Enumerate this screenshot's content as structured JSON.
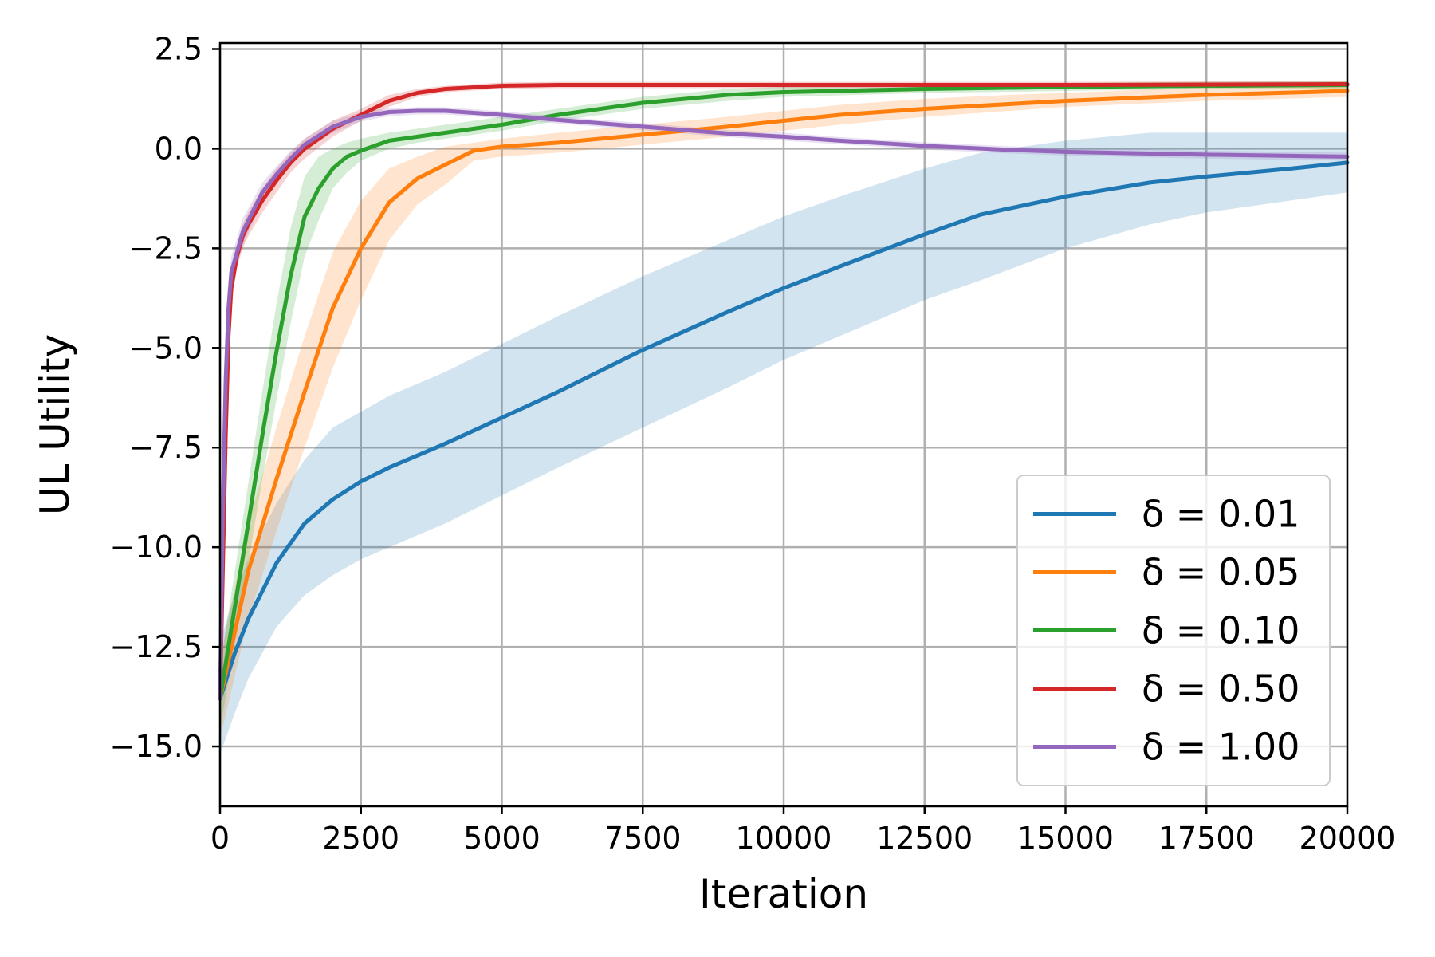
{
  "chart_data": {
    "type": "line",
    "title": "",
    "xlabel": "Iteration",
    "ylabel": "UL Utility",
    "xlim": [
      0,
      20000
    ],
    "ylim": [
      -16.5,
      2.65
    ],
    "xticks": [
      0,
      2500,
      5000,
      7500,
      10000,
      12500,
      15000,
      17500,
      20000
    ],
    "yticks": [
      2.5,
      0.0,
      -2.5,
      -5.0,
      -7.5,
      -10.0,
      -12.5,
      -15.0
    ],
    "xtick_labels": [
      "0",
      "2500",
      "5000",
      "7500",
      "10000",
      "12500",
      "15000",
      "17500",
      "20000"
    ],
    "ytick_labels": [
      "2.5",
      "0.0",
      "−2.5",
      "−5.0",
      "−7.5",
      "−10.0",
      "−12.5",
      "−15.0"
    ],
    "grid": true,
    "legend_position": "bottom-right",
    "series": [
      {
        "name": "δ = 0.01",
        "color": "#1f77b4",
        "x": [
          0,
          250,
          500,
          1000,
          1500,
          2000,
          2500,
          3000,
          4000,
          5000,
          6000,
          7500,
          9000,
          10000,
          11000,
          12500,
          13500,
          15000,
          16500,
          17500,
          19000,
          20000
        ],
        "y": [
          -13.8,
          -12.7,
          -11.8,
          -10.4,
          -9.4,
          -8.8,
          -8.35,
          -8.0,
          -7.4,
          -6.75,
          -6.1,
          -5.05,
          -4.1,
          -3.5,
          -2.95,
          -2.15,
          -1.65,
          -1.2,
          -0.85,
          -0.7,
          -0.5,
          -0.35
        ],
        "lower": [
          -15.2,
          -14.2,
          -13.3,
          -12.0,
          -11.2,
          -10.7,
          -10.3,
          -10.0,
          -9.4,
          -8.7,
          -8.0,
          -7.0,
          -6.0,
          -5.3,
          -4.7,
          -3.8,
          -3.3,
          -2.5,
          -1.9,
          -1.6,
          -1.3,
          -1.1
        ],
        "upper": [
          -12.4,
          -11.2,
          -10.3,
          -8.9,
          -7.8,
          -7.0,
          -6.6,
          -6.2,
          -5.6,
          -4.9,
          -4.2,
          -3.2,
          -2.3,
          -1.7,
          -1.2,
          -0.5,
          -0.1,
          0.2,
          0.4,
          0.4,
          0.4,
          0.4
        ]
      },
      {
        "name": "δ = 0.05",
        "color": "#ff7f0e",
        "x": [
          0,
          500,
          1000,
          1500,
          2000,
          2500,
          3000,
          3500,
          4000,
          4500,
          5000,
          6000,
          7500,
          9000,
          10000,
          11000,
          12500,
          14000,
          15000,
          17500,
          20000
        ],
        "y": [
          -13.8,
          -10.6,
          -8.3,
          -6.1,
          -4.0,
          -2.5,
          -1.35,
          -0.75,
          -0.4,
          -0.05,
          0.05,
          0.15,
          0.35,
          0.55,
          0.7,
          0.85,
          1.0,
          1.12,
          1.2,
          1.35,
          1.45
        ],
        "lower": [
          -14.8,
          -11.8,
          -9.6,
          -7.5,
          -5.5,
          -3.8,
          -2.3,
          -1.4,
          -0.9,
          -0.3,
          -0.2,
          -0.1,
          0.1,
          0.3,
          0.45,
          0.6,
          0.8,
          0.95,
          1.05,
          1.2,
          1.3
        ],
        "upper": [
          -12.8,
          -9.4,
          -7.0,
          -4.7,
          -2.6,
          -1.3,
          -0.5,
          -0.2,
          0.05,
          0.15,
          0.25,
          0.4,
          0.6,
          0.8,
          0.95,
          1.1,
          1.25,
          1.35,
          1.4,
          1.55,
          1.65
        ]
      },
      {
        "name": "δ = 0.10",
        "color": "#2ca02c",
        "x": [
          0,
          250,
          500,
          750,
          1000,
          1250,
          1500,
          1750,
          2000,
          2250,
          2500,
          3000,
          3500,
          4000,
          5000,
          6000,
          7500,
          9000,
          10000,
          12500,
          15000,
          17500,
          20000
        ],
        "y": [
          -13.8,
          -11.6,
          -9.4,
          -7.2,
          -5.1,
          -3.2,
          -1.7,
          -1.0,
          -0.5,
          -0.2,
          -0.05,
          0.2,
          0.3,
          0.4,
          0.6,
          0.85,
          1.15,
          1.35,
          1.42,
          1.5,
          1.55,
          1.58,
          1.6
        ],
        "lower": [
          -14.6,
          -12.5,
          -10.4,
          -8.3,
          -6.3,
          -4.4,
          -2.7,
          -1.8,
          -1.0,
          -0.6,
          -0.3,
          0.0,
          0.15,
          0.25,
          0.45,
          0.7,
          1.0,
          1.2,
          1.3,
          1.4,
          1.45,
          1.5,
          1.5
        ],
        "upper": [
          -13.0,
          -10.7,
          -8.4,
          -6.1,
          -3.9,
          -2.0,
          -0.7,
          -0.2,
          0.0,
          0.15,
          0.25,
          0.4,
          0.5,
          0.6,
          0.8,
          1.0,
          1.3,
          1.5,
          1.55,
          1.6,
          1.65,
          1.68,
          1.7
        ]
      },
      {
        "name": "δ = 0.50",
        "color": "#d62728",
        "x": [
          0,
          50,
          100,
          150,
          200,
          300,
          400,
          500,
          750,
          1000,
          1250,
          1500,
          2000,
          2500,
          3000,
          3500,
          4000,
          5000,
          6000,
          7500,
          10000,
          15000,
          20000
        ],
        "y": [
          -13.8,
          -10.5,
          -7.2,
          -4.7,
          -3.5,
          -2.7,
          -2.2,
          -1.9,
          -1.3,
          -0.8,
          -0.35,
          0.0,
          0.5,
          0.85,
          1.2,
          1.4,
          1.5,
          1.58,
          1.6,
          1.6,
          1.6,
          1.6,
          1.62
        ],
        "lower": [
          -14.2,
          -11.0,
          -7.8,
          -5.2,
          -3.9,
          -3.0,
          -2.5,
          -2.2,
          -1.6,
          -1.1,
          -0.6,
          -0.25,
          0.3,
          0.7,
          1.05,
          1.3,
          1.42,
          1.5,
          1.52,
          1.52,
          1.52,
          1.52,
          1.54
        ],
        "upper": [
          -13.4,
          -10.0,
          -6.6,
          -4.2,
          -3.1,
          -2.4,
          -1.9,
          -1.6,
          -1.0,
          -0.5,
          -0.1,
          0.25,
          0.7,
          1.0,
          1.35,
          1.5,
          1.58,
          1.66,
          1.68,
          1.68,
          1.68,
          1.68,
          1.7
        ]
      },
      {
        "name": "δ = 1.00",
        "color": "#9467bd",
        "x": [
          0,
          50,
          100,
          150,
          200,
          300,
          400,
          500,
          750,
          1000,
          1250,
          1500,
          2000,
          2500,
          3000,
          3500,
          4000,
          5000,
          6000,
          7500,
          9000,
          10000,
          11000,
          12500,
          14000,
          15000,
          17500,
          20000
        ],
        "y": [
          -13.8,
          -9.0,
          -5.8,
          -4.0,
          -3.1,
          -2.6,
          -2.1,
          -1.8,
          -1.1,
          -0.65,
          -0.25,
          0.1,
          0.55,
          0.8,
          0.92,
          0.95,
          0.95,
          0.85,
          0.72,
          0.55,
          0.38,
          0.3,
          0.2,
          0.07,
          -0.03,
          -0.08,
          -0.15,
          -0.2
        ],
        "lower": [
          -14.4,
          -9.6,
          -6.4,
          -4.5,
          -3.5,
          -2.95,
          -2.45,
          -2.1,
          -1.35,
          -0.85,
          -0.45,
          -0.05,
          0.4,
          0.68,
          0.82,
          0.86,
          0.86,
          0.76,
          0.63,
          0.46,
          0.29,
          0.2,
          0.11,
          -0.02,
          -0.12,
          -0.17,
          -0.25,
          -0.3
        ],
        "upper": [
          -13.2,
          -8.4,
          -5.2,
          -3.5,
          -2.7,
          -2.25,
          -1.75,
          -1.5,
          -0.85,
          -0.45,
          -0.05,
          0.25,
          0.7,
          0.92,
          1.02,
          1.04,
          1.04,
          0.94,
          0.81,
          0.64,
          0.47,
          0.4,
          0.29,
          0.16,
          0.06,
          0.01,
          -0.05,
          -0.1
        ]
      }
    ]
  }
}
